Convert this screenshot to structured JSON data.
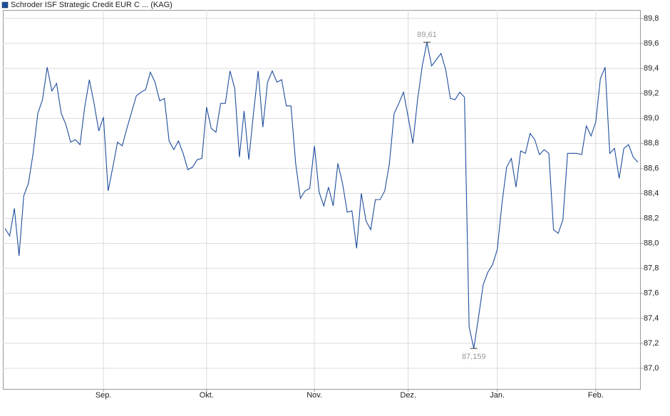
{
  "chart_data": {
    "type": "line",
    "series": [
      {
        "name": "Schroder ISF Strategic Credit EUR C ... (KAG)",
        "color": "#1f4e9c",
        "values": [
          88.12,
          88.06,
          88.28,
          87.9,
          88.38,
          88.48,
          88.72,
          89.04,
          89.15,
          89.41,
          89.22,
          89.28,
          89.04,
          88.95,
          88.81,
          88.83,
          88.79,
          89.09,
          89.31,
          89.12,
          88.9,
          89.01,
          88.42,
          88.61,
          88.81,
          88.78,
          88.92,
          89.05,
          89.18,
          89.21,
          89.23,
          89.37,
          89.29,
          89.14,
          89.16,
          88.82,
          88.75,
          88.82,
          88.72,
          88.59,
          88.61,
          88.67,
          88.68,
          89.09,
          88.92,
          88.89,
          89.12,
          89.12,
          89.38,
          89.24,
          88.69,
          89.06,
          88.67,
          89.04,
          89.38,
          88.93,
          89.29,
          89.38,
          89.29,
          89.31,
          89.1,
          89.1,
          88.64,
          88.36,
          88.42,
          88.44,
          88.78,
          88.41,
          88.3,
          88.45,
          88.3,
          88.64,
          88.48,
          88.25,
          88.26,
          87.96,
          88.4,
          88.18,
          88.11,
          88.35,
          88.35,
          88.42,
          88.64,
          89.04,
          89.12,
          89.21,
          89.01,
          88.8,
          89.15,
          89.42,
          89.61,
          89.42,
          89.47,
          89.52,
          89.39,
          89.16,
          89.15,
          89.21,
          89.17,
          87.33,
          87.159,
          87.41,
          87.67,
          87.77,
          87.83,
          87.95,
          88.32,
          88.61,
          88.68,
          88.45,
          88.74,
          88.72,
          88.88,
          88.83,
          88.71,
          88.75,
          88.72,
          88.11,
          88.08,
          88.19,
          88.72,
          88.72,
          88.72,
          88.71,
          88.94,
          88.86,
          88.97,
          89.32,
          89.41,
          88.72,
          88.76,
          88.52,
          88.76,
          88.79,
          88.69,
          88.65
        ]
      }
    ],
    "categories": [
      null,
      null,
      null,
      null,
      null,
      null,
      null,
      null,
      null,
      null,
      null,
      null,
      null,
      null,
      null,
      null,
      null,
      null,
      null,
      null,
      null,
      "Sep.",
      null,
      null,
      null,
      null,
      null,
      null,
      null,
      null,
      null,
      null,
      null,
      null,
      null,
      null,
      null,
      null,
      null,
      null,
      null,
      null,
      null,
      "Okt.",
      null,
      null,
      null,
      null,
      null,
      null,
      null,
      null,
      null,
      null,
      null,
      null,
      null,
      null,
      null,
      null,
      null,
      null,
      null,
      null,
      null,
      null,
      "Nov.",
      null,
      null,
      null,
      null,
      null,
      null,
      null,
      null,
      null,
      null,
      null,
      null,
      null,
      null,
      null,
      null,
      null,
      null,
      null,
      "Dez.",
      null,
      null,
      null,
      null,
      null,
      null,
      null,
      null,
      null,
      null,
      null,
      null,
      null,
      null,
      null,
      null,
      null,
      null,
      "Jan.",
      null,
      null,
      null,
      null,
      null,
      null,
      null,
      null,
      null,
      null,
      null,
      null,
      null,
      null,
      null,
      null,
      null,
      null,
      null,
      null,
      "Feb.",
      null,
      null,
      null,
      null,
      null,
      null,
      null,
      null,
      null
    ],
    "ylim": [
      86.835,
      89.868
    ],
    "yticks": [
      {
        "value": 87.0,
        "label": "87,0"
      },
      {
        "value": 87.2,
        "label": "87,2"
      },
      {
        "value": 87.4,
        "label": "87,4"
      },
      {
        "value": 87.6,
        "label": "87,6"
      },
      {
        "value": 87.8,
        "label": "87,8"
      },
      {
        "value": 88.0,
        "label": "88,0"
      },
      {
        "value": 88.2,
        "label": "88,2"
      },
      {
        "value": 88.4,
        "label": "88,4"
      },
      {
        "value": 88.6,
        "label": "88,6"
      },
      {
        "value": 88.8,
        "label": "88,8"
      },
      {
        "value": 89.0,
        "label": "89,0"
      },
      {
        "value": 89.2,
        "label": "89,2"
      },
      {
        "value": 89.4,
        "label": "89,4"
      },
      {
        "value": 89.6,
        "label": "89,6"
      },
      {
        "value": 89.8,
        "label": "89,8"
      }
    ],
    "annotations": [
      {
        "value": 89.61,
        "label": "89,61"
      },
      {
        "value": 87.159,
        "label": "87,159"
      }
    ],
    "grid": true
  }
}
